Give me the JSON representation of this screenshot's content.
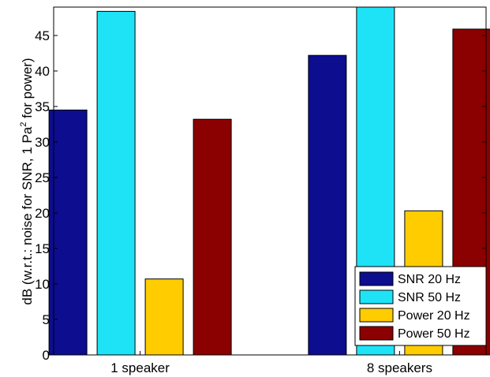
{
  "chart_data": {
    "type": "bar",
    "title": "",
    "xlabel": "",
    "ylabel": "dB (w.r.t.: noise for SNR, 1 Pa",
    "ylabel_sup": "2",
    "ylabel_tail": " for power)",
    "categories": [
      "1 speaker",
      "8 speakers"
    ],
    "ylim": [
      0,
      49
    ],
    "yticks": [
      0,
      5,
      10,
      15,
      20,
      25,
      30,
      35,
      40,
      45
    ],
    "grid": false,
    "legend_position": "bottom-right",
    "series": [
      {
        "name": "SNR 20 Hz",
        "color": "#0d0d8f",
        "values": [
          34.5,
          42.2
        ]
      },
      {
        "name": "SNR 50 Hz",
        "color": "#1ee3f7",
        "values": [
          48.4,
          49.5
        ]
      },
      {
        "name": "Power 20 Hz",
        "color": "#ffcc00",
        "values": [
          10.7,
          20.3
        ]
      },
      {
        "name": "Power 50 Hz",
        "color": "#8b0000",
        "values": [
          33.2,
          45.9
        ]
      }
    ]
  }
}
